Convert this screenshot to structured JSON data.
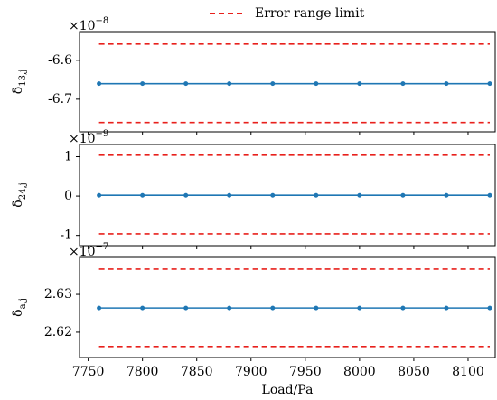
{
  "legend": {
    "label": "Error range limit",
    "color": "#e8201c",
    "style": "dashed"
  },
  "chart_data": [
    {
      "type": "line",
      "ylabel": {
        "symbol": "δ",
        "subscript": "13,j"
      },
      "y_offset": {
        "base": "×10",
        "exponent": "−8"
      },
      "x": [
        7760,
        7800,
        7840,
        7880,
        7920,
        7960,
        8000,
        8040,
        8080,
        8120
      ],
      "xlim": [
        7742,
        8125
      ],
      "ylim": [
        -6.784,
        -6.526
      ],
      "yticks": [
        -6.6,
        -6.7
      ],
      "series": [
        {
          "color": "#1f77b4",
          "marker": "circle",
          "values": [
            -6.66,
            -6.66,
            -6.66,
            -6.66,
            -6.66,
            -6.66,
            -6.66,
            -6.66,
            -6.66,
            -6.66
          ]
        },
        {
          "color": "#e8201c",
          "style": "dashed",
          "values": [
            -6.558,
            -6.558,
            -6.558,
            -6.558,
            -6.558,
            -6.558,
            -6.558,
            -6.558,
            -6.558,
            -6.558
          ]
        },
        {
          "color": "#e8201c",
          "style": "dashed",
          "values": [
            -6.76,
            -6.76,
            -6.76,
            -6.76,
            -6.76,
            -6.76,
            -6.76,
            -6.76,
            -6.76,
            -6.76
          ]
        }
      ]
    },
    {
      "type": "line",
      "ylabel": {
        "symbol": "δ",
        "subscript": "24,j"
      },
      "y_offset": {
        "base": "×10",
        "exponent": "−9"
      },
      "x": [
        7760,
        7800,
        7840,
        7880,
        7920,
        7960,
        8000,
        8040,
        8080,
        8120
      ],
      "xlim": [
        7742,
        8125
      ],
      "ylim": [
        -1.26,
        1.31
      ],
      "yticks": [
        1,
        0,
        -1
      ],
      "series": [
        {
          "color": "#1f77b4",
          "marker": "circle",
          "values": [
            0.02,
            0.02,
            0.02,
            0.02,
            0.02,
            0.02,
            0.02,
            0.02,
            0.02,
            0.02
          ]
        },
        {
          "color": "#e8201c",
          "style": "dashed",
          "values": [
            1.04,
            1.04,
            1.04,
            1.04,
            1.04,
            1.04,
            1.04,
            1.04,
            1.04,
            1.04
          ]
        },
        {
          "color": "#e8201c",
          "style": "dashed",
          "values": [
            -0.96,
            -0.96,
            -0.96,
            -0.96,
            -0.96,
            -0.96,
            -0.96,
            -0.96,
            -0.96,
            -0.96
          ]
        }
      ]
    },
    {
      "type": "line",
      "ylabel": {
        "symbol": "δ",
        "subscript": "a,j"
      },
      "y_offset": {
        "base": "×10",
        "exponent": "−7"
      },
      "xlabel": "Load/Pa",
      "x": [
        7760,
        7800,
        7840,
        7880,
        7920,
        7960,
        8000,
        8040,
        8080,
        8120
      ],
      "xlim": [
        7742,
        8125
      ],
      "xticks": [
        7750,
        7800,
        7850,
        7900,
        7950,
        8000,
        8050,
        8100
      ],
      "ylim": [
        2.6133,
        2.6398
      ],
      "yticks": [
        2.63,
        2.62
      ],
      "series": [
        {
          "color": "#1f77b4",
          "marker": "circle",
          "values": [
            2.6264,
            2.6264,
            2.6264,
            2.6264,
            2.6264,
            2.6264,
            2.6264,
            2.6264,
            2.6264,
            2.6264
          ]
        },
        {
          "color": "#e8201c",
          "style": "dashed",
          "values": [
            2.6367,
            2.6367,
            2.6367,
            2.6367,
            2.6367,
            2.6367,
            2.6367,
            2.6367,
            2.6367,
            2.6367
          ]
        },
        {
          "color": "#e8201c",
          "style": "dashed",
          "values": [
            2.6162,
            2.6162,
            2.6162,
            2.6162,
            2.6162,
            2.6162,
            2.6162,
            2.6162,
            2.6162,
            2.6162
          ]
        }
      ]
    }
  ]
}
